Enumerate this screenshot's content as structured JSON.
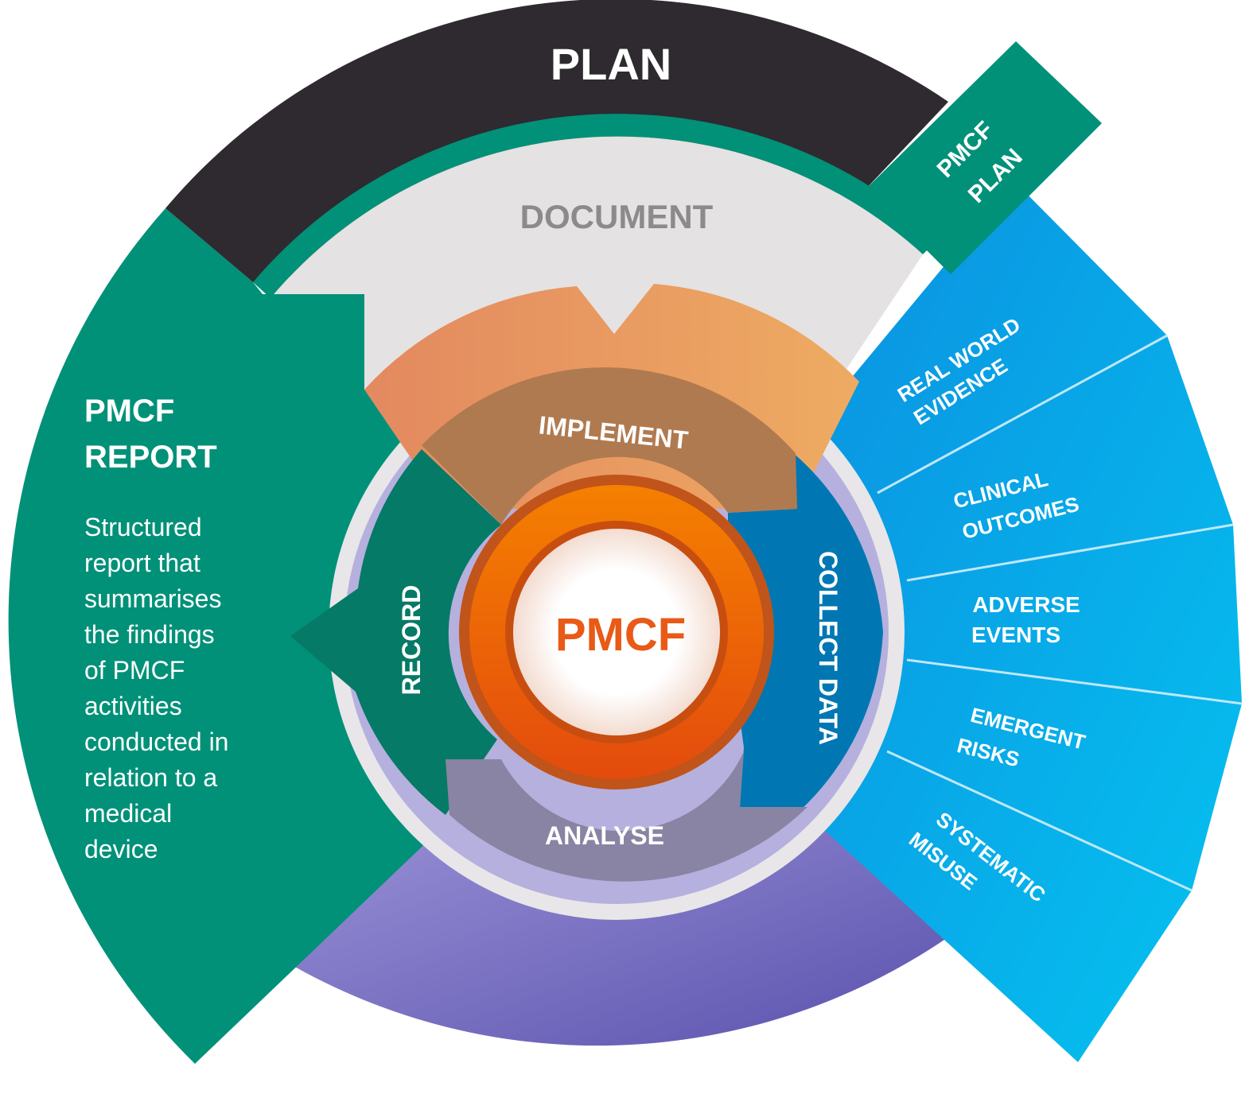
{
  "center": {
    "label": "PMCF"
  },
  "outer_ring": {
    "top_label": "PLAN"
  },
  "plan_box": {
    "line1": "PMCF",
    "line2": "PLAN"
  },
  "document_band": {
    "label": "DOCUMENT"
  },
  "cycle": {
    "implement": "IMPLEMENT",
    "collect": "COLLECT DATA",
    "analyse": "ANALYSE",
    "record": "RECORD"
  },
  "data_sources": [
    {
      "line1": "REAL WORLD",
      "line2": "EVIDENCE"
    },
    {
      "line1": "CLINICAL",
      "line2": "OUTCOMES"
    },
    {
      "line1": "ADVERSE",
      "line2": "EVENTS"
    },
    {
      "line1": "EMERGENT",
      "line2": "RISKS"
    },
    {
      "line1": "SYSTEMATIC",
      "line2": "MISUSE"
    }
  ],
  "report": {
    "title_line1": "PMCF",
    "title_line2": "REPORT",
    "description_lines": [
      "Structured",
      "report that",
      "summarises",
      "the findings",
      "of PMCF",
      "activities",
      "conducted in",
      "relation to a",
      "medical",
      "device"
    ]
  },
  "colors": {
    "plan": "#2e2a2f",
    "teal": "#009178",
    "document": "#e4e2e2",
    "implement": "#e8955c",
    "collect": "#0c91dd",
    "analyse": "#7f77be",
    "center": "#ee6a10",
    "center_text": "#e85a16"
  }
}
